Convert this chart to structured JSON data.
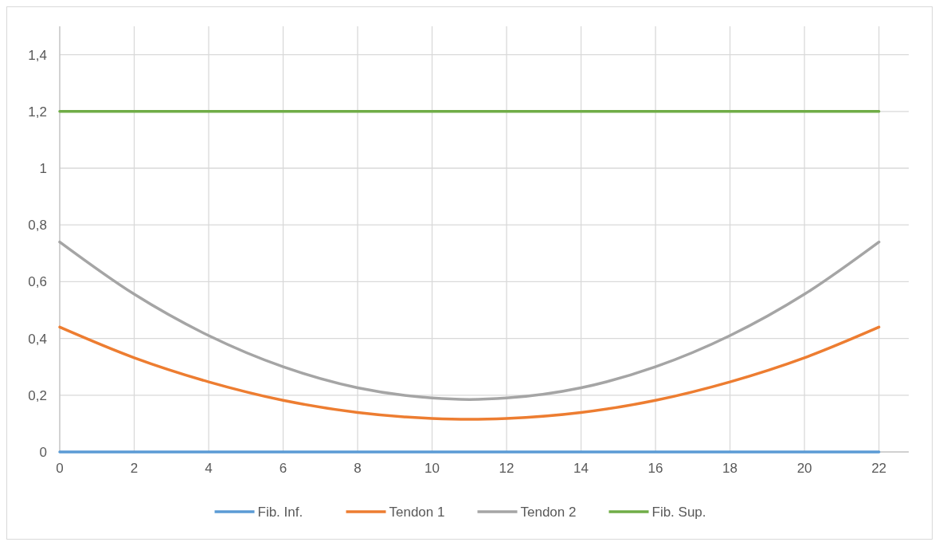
{
  "chart_data": {
    "type": "line",
    "xlim": [
      0,
      22.8
    ],
    "xticks": [
      0,
      2,
      4,
      6,
      8,
      10,
      12,
      14,
      16,
      18,
      20,
      22
    ],
    "ylim": [
      0,
      1.5
    ],
    "yticks": [
      0,
      {
        "value": 0.2,
        "label": "0,2"
      },
      {
        "value": 0.4,
        "label": "0,4"
      },
      {
        "value": 0.6,
        "label": "0,6"
      },
      {
        "value": 0.8,
        "label": "0,8"
      },
      1,
      {
        "value": 1.2,
        "label": "1,2"
      },
      {
        "value": 1.4,
        "label": "1,4"
      }
    ],
    "grid": true,
    "legend": "bottom",
    "marker": "none",
    "line_style": "solid",
    "series": [
      {
        "name": "Fib. Inf.",
        "color": "#5b9bd5",
        "x": [
          0,
          22
        ],
        "values": [
          0,
          0
        ]
      },
      {
        "name": "Tendon 1",
        "color": "#ed7d31",
        "x": [
          0,
          2,
          4,
          6,
          8,
          10,
          11,
          12,
          14,
          16,
          18,
          20,
          22
        ],
        "values": [
          0.44,
          0.332,
          0.247,
          0.182,
          0.139,
          0.118,
          0.115,
          0.118,
          0.139,
          0.182,
          0.247,
          0.332,
          0.44
        ]
      },
      {
        "name": "Tendon 2",
        "color": "#a5a5a5",
        "x": [
          0,
          2,
          4,
          6,
          8,
          10,
          11,
          12,
          14,
          16,
          18,
          20,
          22
        ],
        "values": [
          0.74,
          0.556,
          0.41,
          0.3,
          0.226,
          0.19,
          0.185,
          0.19,
          0.226,
          0.3,
          0.41,
          0.556,
          0.74
        ]
      },
      {
        "name": "Fib. Sup.",
        "color": "#70ad47",
        "x": [
          0,
          22
        ],
        "values": [
          1.2,
          1.2
        ]
      }
    ]
  }
}
